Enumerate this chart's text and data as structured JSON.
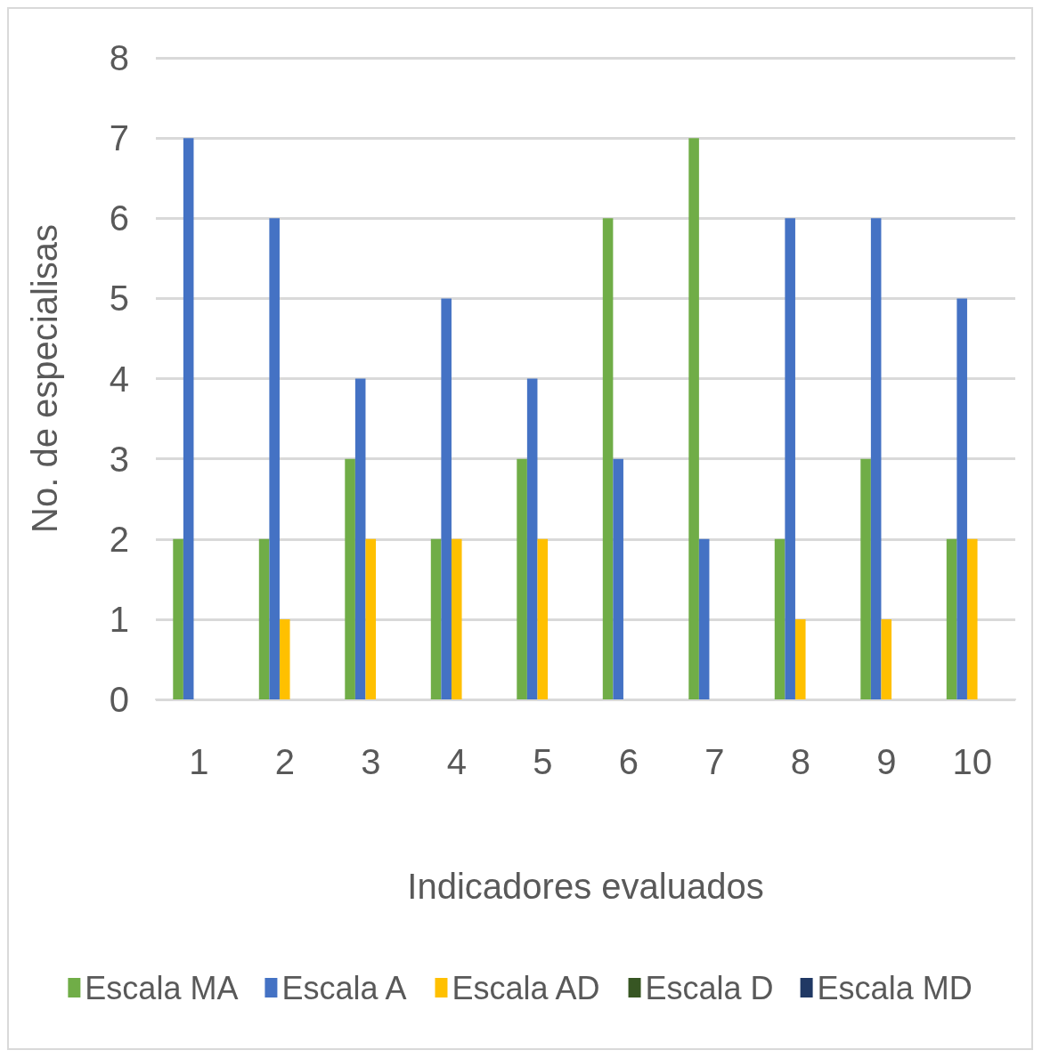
{
  "chart_data": {
    "type": "bar",
    "xlabel": "Indicadores evaluados",
    "ylabel": "No. de especialisas",
    "categories": [
      "1",
      "2",
      "3",
      "4",
      "5",
      "6",
      "7",
      "8",
      "9",
      "10"
    ],
    "series": [
      {
        "name": "Escala MA",
        "color": "#70ad47",
        "values": [
          2,
          2,
          3,
          2,
          3,
          6,
          7,
          2,
          3,
          2
        ]
      },
      {
        "name": "Escala A",
        "color": "#4472c4",
        "values": [
          7,
          6,
          4,
          5,
          4,
          3,
          2,
          6,
          6,
          5
        ]
      },
      {
        "name": "Escala AD",
        "color": "#ffc000",
        "values": [
          0,
          1,
          2,
          2,
          2,
          0,
          0,
          1,
          1,
          2
        ]
      },
      {
        "name": "Escala D",
        "color": "#375623",
        "values": [
          0,
          0,
          0,
          0,
          0,
          0,
          0,
          0,
          0,
          0
        ]
      },
      {
        "name": "Escala MD",
        "color": "#203864",
        "values": [
          0,
          0,
          0,
          0,
          0,
          0,
          0,
          0,
          0,
          0
        ]
      }
    ],
    "ylim": [
      0,
      8
    ],
    "yticks": [
      0,
      1,
      2,
      3,
      4,
      5,
      6,
      7,
      8
    ],
    "grid": "y",
    "legend": "bottom"
  }
}
